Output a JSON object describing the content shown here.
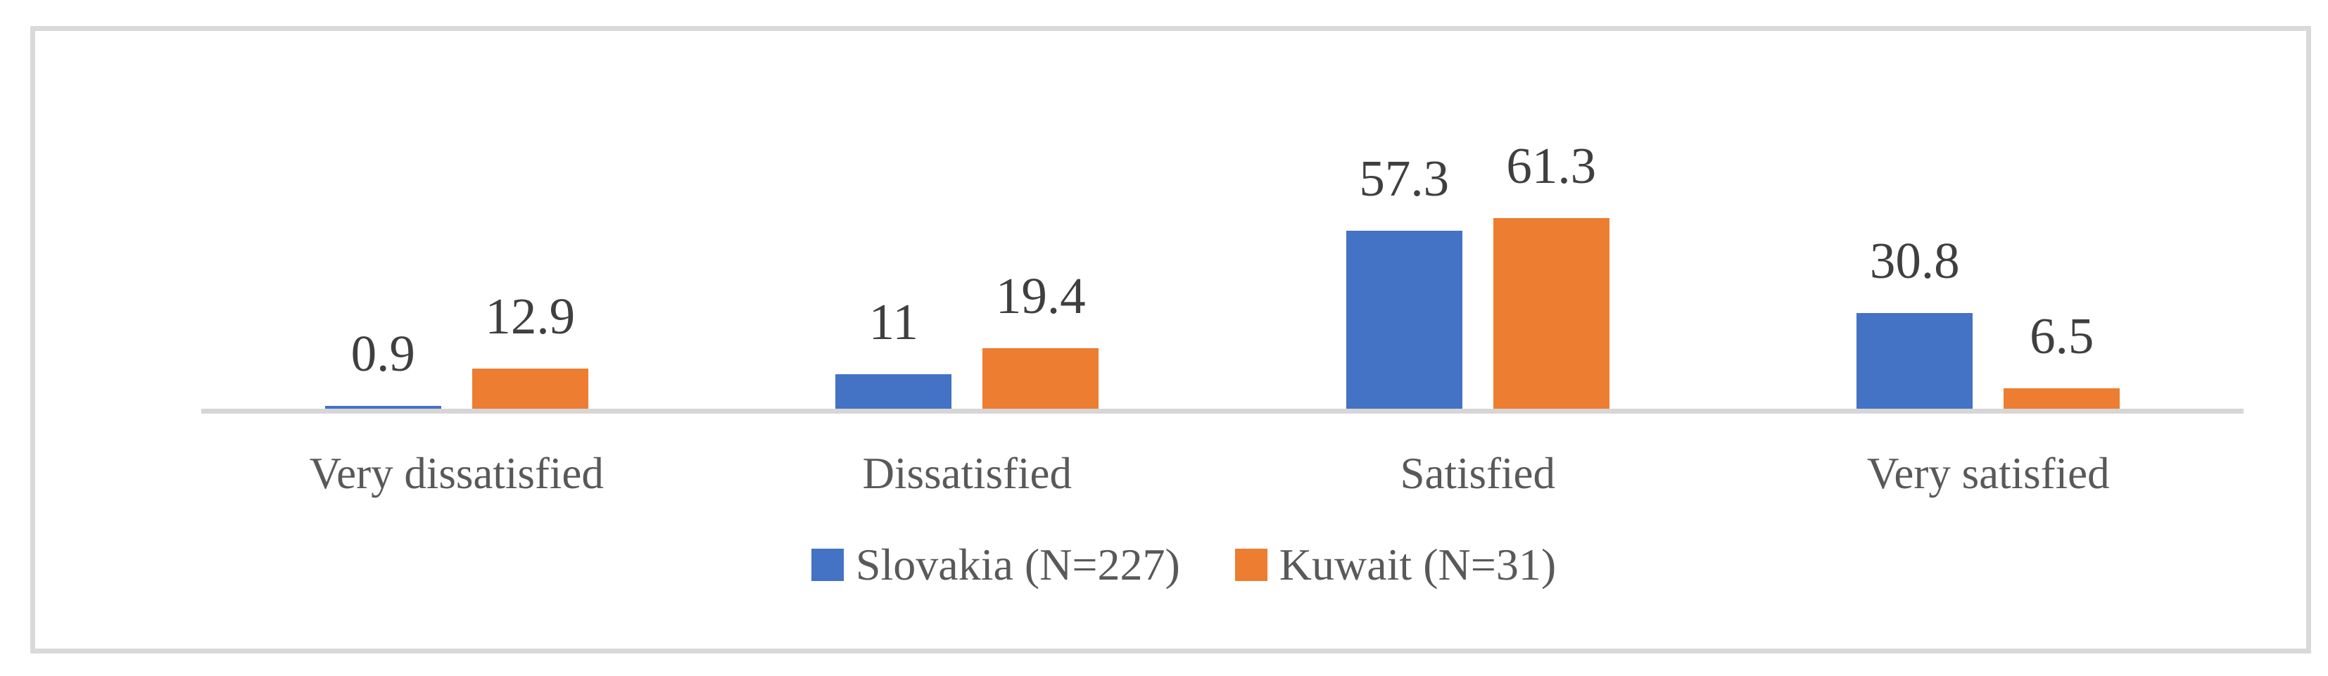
{
  "chart_data": {
    "type": "bar",
    "title": "",
    "categories": [
      "Very dissatisfied",
      "Dissatisfied",
      "Satisfied",
      "Very satisfied"
    ],
    "series": [
      {
        "name": "Slovakia (N=227)",
        "color": "#4472C4",
        "values": [
          0.9,
          11,
          57.3,
          30.8
        ],
        "labels": [
          "0.9",
          "11",
          "57.3",
          "30.8"
        ]
      },
      {
        "name": "Kuwait (N=31)",
        "color": "#ED7D31",
        "values": [
          12.9,
          19.4,
          61.3,
          6.5
        ],
        "labels": [
          "12.9",
          "19.4",
          "61.3",
          "6.5"
        ]
      }
    ],
    "ylim": [
      0,
      100
    ],
    "grid": false,
    "legend_position": "bottom",
    "colors": {
      "axis_line": "#D6D6D6",
      "frame_border": "#D9D9D9",
      "data_label": "#3F3F3F",
      "category_label": "#595959",
      "legend_label": "#595959",
      "background": "#FFFFFF"
    }
  }
}
